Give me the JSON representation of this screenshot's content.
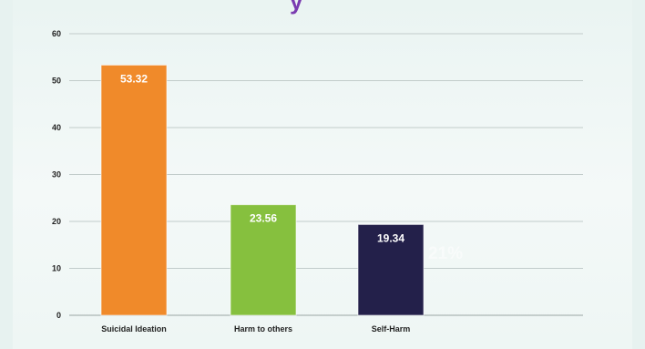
{
  "chart_data": {
    "type": "bar",
    "title": "",
    "xlabel": "",
    "ylabel": "",
    "categories": [
      "Suicidal Ideation",
      "Harm to others",
      "Self-Harm"
    ],
    "values": [
      53.32,
      23.56,
      19.34
    ],
    "value_labels": [
      "53.32",
      "23.56",
      "19.34"
    ],
    "colors": [
      "#f08a2a",
      "#86c03e",
      "#23204a"
    ],
    "ylim": [
      0,
      60
    ],
    "yticks": [
      0,
      10,
      20,
      30,
      40,
      50,
      60
    ],
    "grid": true,
    "legend": "none"
  },
  "title_fragment": "y",
  "overlay_text": "21%"
}
